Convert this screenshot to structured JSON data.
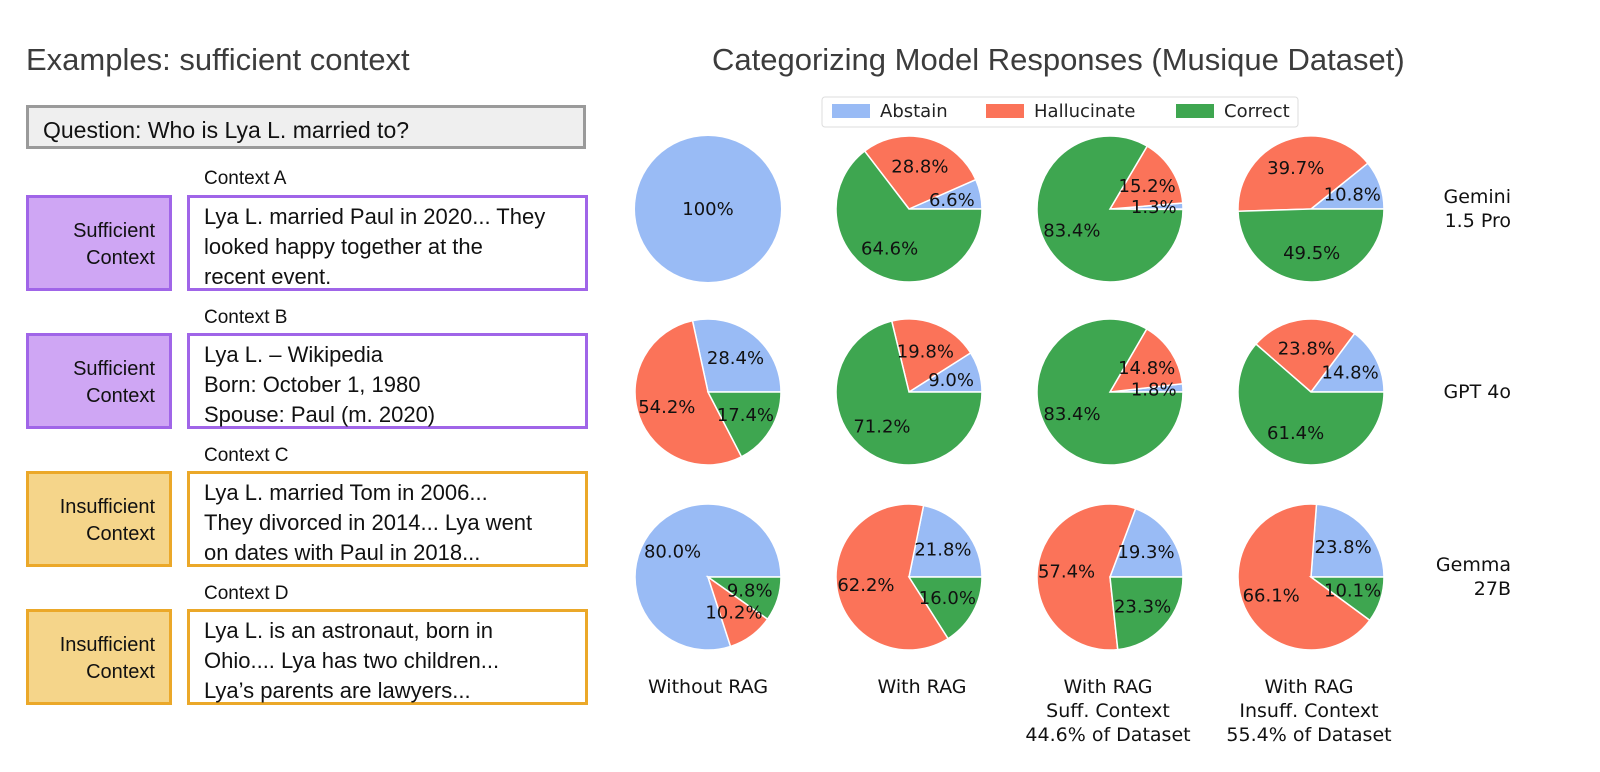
{
  "left_panel": {
    "title": "Examples: sufficient context",
    "question": "Question: Who is Lya L. married to?",
    "contexts": [
      {
        "label": "Context A",
        "tag": [
          "Sufficient",
          "Context"
        ],
        "kind": "suff",
        "lines": [
          "Lya L. married Paul in 2020... They",
          "looked happy together at the",
          "recent event."
        ]
      },
      {
        "label": "Context B",
        "tag": [
          "Sufficient",
          "Context"
        ],
        "kind": "suff",
        "lines": [
          "Lya L. – Wikipedia",
          "Born: October 1, 1980",
          "Spouse: Paul (m. 2020)"
        ]
      },
      {
        "label": "Context C",
        "tag": [
          "Insufficient",
          "Context"
        ],
        "kind": "insuff",
        "lines": [
          "Lya L. married Tom in 2006...",
          "They divorced in 2014... Lya went",
          "on dates with Paul in 2018..."
        ]
      },
      {
        "label": "Context D",
        "tag": [
          "Insufficient",
          "Context"
        ],
        "kind": "insuff",
        "lines": [
          "Lya L. is an astronaut, born in",
          "Ohio.... Lya has two children...",
          "Lya’s parents are lawyers..."
        ]
      }
    ]
  },
  "chart_data": {
    "type": "pie",
    "title": "Categorizing Model Responses (Musique Dataset)",
    "legend": {
      "placement": "top-center",
      "entries": [
        "Abstain",
        "Hallucinate",
        "Correct"
      ]
    },
    "colors": {
      "Abstain": "#99bbf5",
      "Hallucinate": "#fb7359",
      "Correct": "#3ea650"
    },
    "columns": [
      [
        "Without RAG"
      ],
      [
        "With RAG"
      ],
      [
        "With RAG",
        "Suff. Context",
        "44.6% of Dataset"
      ],
      [
        "With RAG",
        "Insuff. Context",
        "55.4% of Dataset"
      ]
    ],
    "rows": [
      {
        "model": [
          "Gemini",
          "1.5 Pro"
        ],
        "pies": [
          {
            "Abstain": 100,
            "Hallucinate": 0,
            "Correct": 0
          },
          {
            "Abstain": 6.6,
            "Hallucinate": 28.8,
            "Correct": 64.6
          },
          {
            "Abstain": 1.3,
            "Hallucinate": 15.2,
            "Correct": 83.4
          },
          {
            "Abstain": 10.8,
            "Hallucinate": 39.7,
            "Correct": 49.5
          }
        ]
      },
      {
        "model": [
          "GPT 4o"
        ],
        "pies": [
          {
            "Abstain": 28.4,
            "Hallucinate": 54.2,
            "Correct": 17.4
          },
          {
            "Abstain": 9.0,
            "Hallucinate": 19.8,
            "Correct": 71.2
          },
          {
            "Abstain": 1.8,
            "Hallucinate": 14.8,
            "Correct": 83.4
          },
          {
            "Abstain": 14.8,
            "Hallucinate": 23.8,
            "Correct": 61.4
          }
        ]
      },
      {
        "model": [
          "Gemma",
          "27B"
        ],
        "pies": [
          {
            "Abstain": 80.0,
            "Hallucinate": 10.2,
            "Correct": 9.8
          },
          {
            "Abstain": 21.8,
            "Hallucinate": 62.2,
            "Correct": 16.0
          },
          {
            "Abstain": 19.3,
            "Hallucinate": 57.4,
            "Correct": 23.3
          },
          {
            "Abstain": 23.8,
            "Hallucinate": 66.1,
            "Correct": 10.1
          }
        ]
      }
    ]
  }
}
